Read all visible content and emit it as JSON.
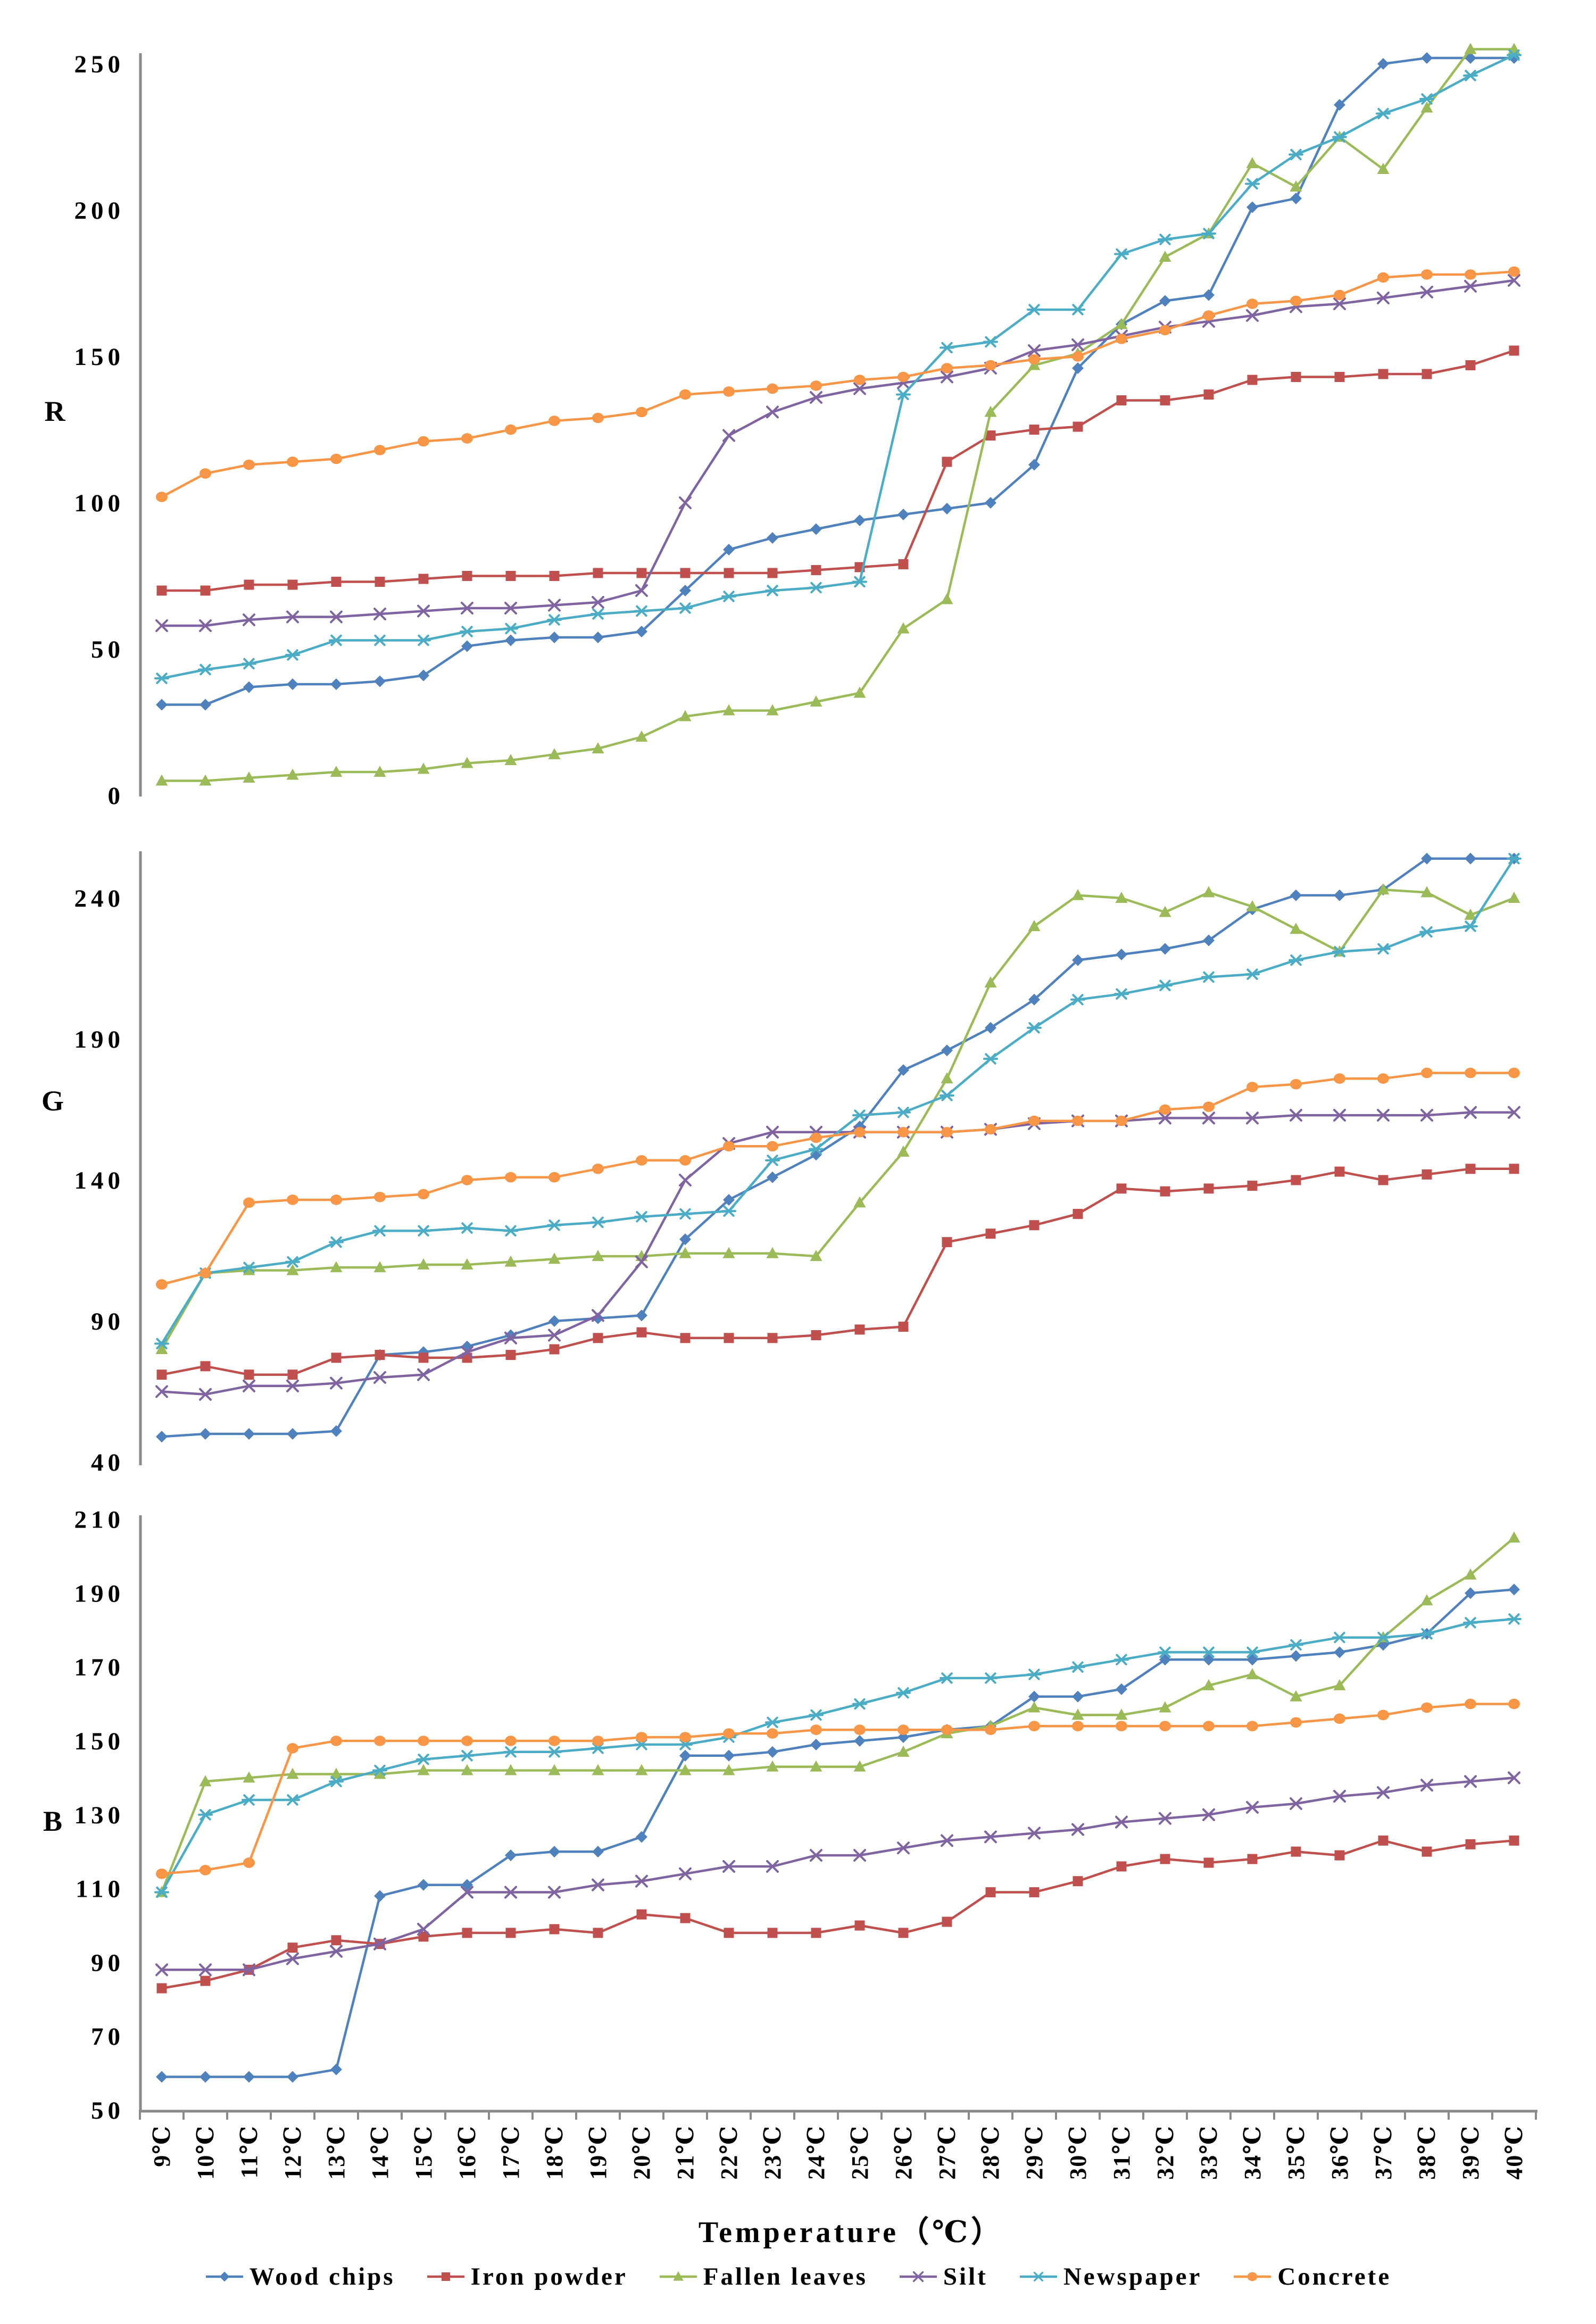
{
  "xaxis_title": "Temperature（℃）",
  "axis_color": "#8a8a8a",
  "categories": [
    "9℃",
    "10℃",
    "11℃",
    "12℃",
    "13℃",
    "14℃",
    "15℃",
    "16℃",
    "17℃",
    "18℃",
    "19℃",
    "20℃",
    "21℃",
    "22℃",
    "23℃",
    "24℃",
    "25℃",
    "26℃",
    "27℃",
    "28℃",
    "29℃",
    "30℃",
    "31℃",
    "32℃",
    "33℃",
    "34℃",
    "35℃",
    "36℃",
    "37℃",
    "38℃",
    "39℃",
    "40℃"
  ],
  "legend": [
    {
      "label": "Wood chips",
      "color": "#4F81BD",
      "marker": "diamond"
    },
    {
      "label": "Iron powder",
      "color": "#C0504D",
      "marker": "square"
    },
    {
      "label": "Fallen leaves",
      "color": "#9BBB59",
      "marker": "triangle"
    },
    {
      "label": "Silt",
      "color": "#8064A2",
      "marker": "x"
    },
    {
      "label": "Newspaper",
      "color": "#4BACC6",
      "marker": "asterisk"
    },
    {
      "label": "Concrete",
      "color": "#F79646",
      "marker": "circle"
    }
  ],
  "chart_data": [
    {
      "type": "line",
      "ylabel": "R",
      "ylim": [
        0,
        260
      ],
      "yticks": [
        0,
        50,
        100,
        150,
        200,
        250
      ],
      "legend_position": "bottom",
      "grid": false,
      "series": [
        {
          "name": "Wood chips",
          "color": "#4F81BD",
          "marker": "diamond",
          "values": [
            31,
            31,
            37,
            38,
            38,
            39,
            41,
            51,
            53,
            54,
            54,
            56,
            70,
            84,
            88,
            91,
            94,
            96,
            98,
            100,
            113,
            146,
            161,
            169,
            171,
            201,
            204,
            236,
            250,
            252,
            252,
            252
          ]
        },
        {
          "name": "Iron powder",
          "color": "#C0504D",
          "marker": "square",
          "values": [
            70,
            70,
            72,
            72,
            73,
            73,
            74,
            75,
            75,
            75,
            76,
            76,
            76,
            76,
            76,
            77,
            78,
            79,
            114,
            123,
            125,
            126,
            135,
            135,
            137,
            142,
            143,
            143,
            144,
            144,
            147,
            152
          ]
        },
        {
          "name": "Fallen leaves",
          "color": "#9BBB59",
          "marker": "triangle",
          "values": [
            5,
            5,
            6,
            7,
            8,
            8,
            9,
            11,
            12,
            14,
            16,
            20,
            27,
            29,
            29,
            32,
            35,
            57,
            67,
            131,
            147,
            151,
            161,
            184,
            192,
            216,
            208,
            225,
            214,
            235,
            255,
            255
          ]
        },
        {
          "name": "Silt",
          "color": "#8064A2",
          "marker": "x",
          "values": [
            58,
            58,
            60,
            61,
            61,
            62,
            63,
            64,
            64,
            65,
            66,
            70,
            100,
            123,
            131,
            136,
            139,
            141,
            143,
            146,
            152,
            154,
            157,
            160,
            162,
            164,
            167,
            168,
            170,
            172,
            174,
            176
          ]
        },
        {
          "name": "Newspaper",
          "color": "#4BACC6",
          "marker": "asterisk",
          "values": [
            40,
            43,
            45,
            48,
            53,
            53,
            53,
            56,
            57,
            60,
            62,
            63,
            64,
            68,
            70,
            71,
            73,
            137,
            153,
            155,
            166,
            166,
            185,
            190,
            192,
            209,
            219,
            225,
            233,
            238,
            246,
            253
          ]
        },
        {
          "name": "Concrete",
          "color": "#F79646",
          "marker": "circle",
          "values": [
            102,
            110,
            113,
            114,
            115,
            118,
            121,
            122,
            125,
            128,
            129,
            131,
            137,
            138,
            139,
            140,
            142,
            143,
            146,
            147,
            149,
            150,
            156,
            159,
            164,
            168,
            169,
            171,
            177,
            178,
            178,
            179
          ]
        }
      ]
    },
    {
      "type": "line",
      "ylabel": "G",
      "ylim": [
        40,
        260
      ],
      "yticks": [
        40,
        90,
        140,
        190,
        240
      ],
      "legend_position": "bottom",
      "grid": false,
      "series": [
        {
          "name": "Wood chips",
          "color": "#4F81BD",
          "marker": "diamond",
          "values": [
            49,
            50,
            50,
            50,
            51,
            78,
            79,
            81,
            85,
            90,
            91,
            92,
            119,
            133,
            141,
            149,
            159,
            179,
            186,
            194,
            204,
            218,
            220,
            222,
            225,
            236,
            241,
            241,
            243,
            254,
            254,
            254
          ]
        },
        {
          "name": "Iron powder",
          "color": "#C0504D",
          "marker": "square",
          "values": [
            71,
            74,
            71,
            71,
            77,
            78,
            77,
            77,
            78,
            80,
            84,
            86,
            84,
            84,
            84,
            85,
            87,
            88,
            118,
            121,
            124,
            128,
            137,
            136,
            137,
            138,
            140,
            143,
            140,
            142,
            144,
            144
          ]
        },
        {
          "name": "Fallen leaves",
          "color": "#9BBB59",
          "marker": "triangle",
          "values": [
            80,
            107,
            108,
            108,
            109,
            109,
            110,
            110,
            111,
            112,
            113,
            113,
            114,
            114,
            114,
            113,
            132,
            150,
            176,
            210,
            230,
            241,
            240,
            235,
            242,
            237,
            229,
            221,
            243,
            242,
            234,
            240
          ]
        },
        {
          "name": "Silt",
          "color": "#8064A2",
          "marker": "x",
          "values": [
            65,
            64,
            67,
            67,
            68,
            70,
            71,
            79,
            84,
            85,
            92,
            111,
            140,
            153,
            157,
            157,
            157,
            157,
            157,
            158,
            160,
            161,
            161,
            162,
            162,
            162,
            163,
            163,
            163,
            163,
            164,
            164
          ]
        },
        {
          "name": "Newspaper",
          "color": "#4BACC6",
          "marker": "asterisk",
          "values": [
            82,
            107,
            109,
            111,
            118,
            122,
            122,
            123,
            122,
            124,
            125,
            127,
            128,
            129,
            147,
            151,
            163,
            164,
            170,
            183,
            194,
            204,
            206,
            209,
            212,
            213,
            218,
            221,
            222,
            228,
            230,
            254
          ]
        },
        {
          "name": "Concrete",
          "color": "#F79646",
          "marker": "circle",
          "values": [
            103,
            107,
            132,
            133,
            133,
            134,
            135,
            140,
            141,
            141,
            144,
            147,
            147,
            152,
            152,
            155,
            157,
            157,
            157,
            158,
            161,
            161,
            161,
            165,
            166,
            173,
            174,
            176,
            176,
            178,
            178,
            178
          ]
        }
      ]
    },
    {
      "type": "line",
      "ylabel": "B",
      "ylim": [
        50,
        210
      ],
      "yticks": [
        50,
        70,
        90,
        110,
        130,
        150,
        170,
        190,
        210
      ],
      "legend_position": "bottom",
      "grid": false,
      "series": [
        {
          "name": "Wood chips",
          "color": "#4F81BD",
          "marker": "diamond",
          "values": [
            59,
            59,
            59,
            59,
            61,
            108,
            111,
            111,
            119,
            120,
            120,
            124,
            146,
            146,
            147,
            149,
            150,
            151,
            153,
            154,
            162,
            162,
            164,
            172,
            172,
            172,
            173,
            174,
            176,
            179,
            190,
            191
          ]
        },
        {
          "name": "Iron powder",
          "color": "#C0504D",
          "marker": "square",
          "values": [
            83,
            85,
            88,
            94,
            96,
            95,
            97,
            98,
            98,
            99,
            98,
            103,
            102,
            98,
            98,
            98,
            100,
            98,
            101,
            109,
            109,
            112,
            116,
            118,
            117,
            118,
            120,
            119,
            123,
            120,
            122,
            123
          ]
        },
        {
          "name": "Fallen leaves",
          "color": "#9BBB59",
          "marker": "triangle",
          "values": [
            109,
            139,
            140,
            141,
            141,
            141,
            142,
            142,
            142,
            142,
            142,
            142,
            142,
            142,
            143,
            143,
            143,
            147,
            152,
            154,
            159,
            157,
            157,
            159,
            165,
            168,
            162,
            165,
            178,
            188,
            195,
            205
          ]
        },
        {
          "name": "Silt",
          "color": "#8064A2",
          "marker": "x",
          "values": [
            88,
            88,
            88,
            91,
            93,
            95,
            99,
            109,
            109,
            109,
            111,
            112,
            114,
            116,
            116,
            119,
            119,
            121,
            123,
            124,
            125,
            126,
            128,
            129,
            130,
            132,
            133,
            135,
            136,
            138,
            139,
            140
          ]
        },
        {
          "name": "Newspaper",
          "color": "#4BACC6",
          "marker": "asterisk",
          "values": [
            109,
            130,
            134,
            134,
            139,
            142,
            145,
            146,
            147,
            147,
            148,
            149,
            149,
            151,
            155,
            157,
            160,
            163,
            167,
            167,
            168,
            170,
            172,
            174,
            174,
            174,
            176,
            178,
            178,
            179,
            182,
            183
          ]
        },
        {
          "name": "Concrete",
          "color": "#F79646",
          "marker": "circle",
          "values": [
            114,
            115,
            117,
            148,
            150,
            150,
            150,
            150,
            150,
            150,
            150,
            151,
            151,
            152,
            152,
            153,
            153,
            153,
            153,
            153,
            154,
            154,
            154,
            154,
            154,
            154,
            155,
            156,
            157,
            159,
            160,
            160
          ]
        }
      ]
    }
  ]
}
